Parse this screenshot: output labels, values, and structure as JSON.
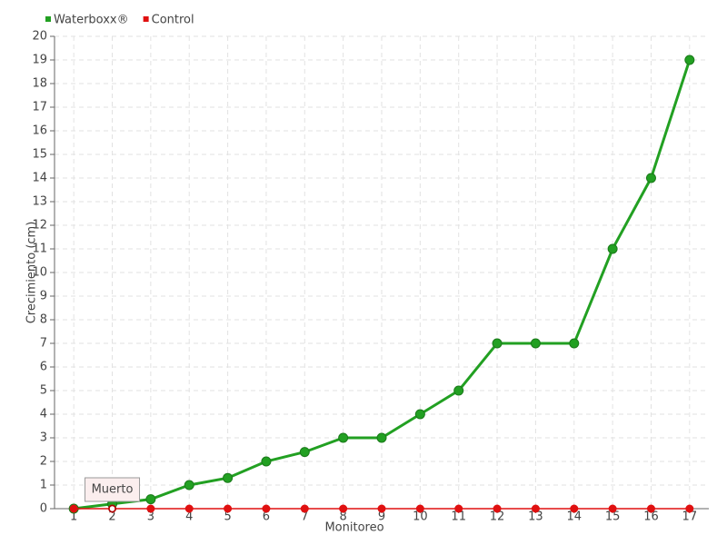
{
  "chart_data": {
    "type": "line",
    "x": [
      1,
      2,
      3,
      4,
      5,
      6,
      7,
      8,
      9,
      10,
      11,
      12,
      13,
      14,
      15,
      16,
      17
    ],
    "series": [
      {
        "name": "Waterboxx®",
        "color": "#22a022",
        "values": [
          0,
          0.2,
          0.4,
          1,
          1.3,
          2,
          2.4,
          3,
          3,
          4,
          5,
          7,
          7,
          7,
          11,
          14,
          19
        ]
      },
      {
        "name": "Control",
        "color": "#e01010",
        "values": [
          0,
          0,
          0,
          0,
          0,
          0,
          0,
          0,
          0,
          0,
          0,
          0,
          0,
          0,
          0,
          0,
          0
        ]
      }
    ],
    "xlabel": "Monitoreo",
    "ylabel": "Crecimiento (cm)",
    "xlim": [
      0.5,
      17.5
    ],
    "xticks": [
      1,
      2,
      3,
      4,
      5,
      6,
      7,
      8,
      9,
      10,
      11,
      12,
      13,
      14,
      15,
      16,
      17
    ],
    "ylim": [
      0,
      20
    ],
    "yticks": [
      0,
      1,
      2,
      3,
      4,
      5,
      6,
      7,
      8,
      9,
      10,
      11,
      12,
      13,
      14,
      15,
      16,
      17,
      18,
      19,
      20
    ],
    "grid": true,
    "legend": "top-left",
    "annotation": {
      "text": "Muerto",
      "series": 1,
      "index": 1
    }
  }
}
